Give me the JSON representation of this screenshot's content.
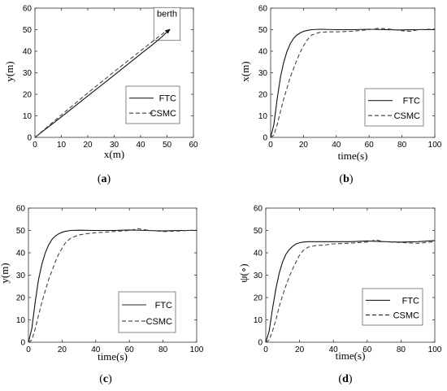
{
  "chart_data": [
    {
      "type": "line",
      "panel_label": "a",
      "xlabel": "x(m)",
      "ylabel": "y(m)",
      "xlim": [
        0,
        60
      ],
      "ylim": [
        0,
        60
      ],
      "xticks": [
        0,
        10,
        20,
        30,
        40,
        50,
        60
      ],
      "yticks": [
        0,
        10,
        20,
        30,
        40,
        50,
        60
      ],
      "grid": false,
      "legend_position": "bottom-right",
      "annotation": {
        "text": "berth",
        "box_x": [
          45,
          55
        ],
        "box_y": [
          45,
          55
        ]
      },
      "series": [
        {
          "name": "FTC",
          "style": "solid",
          "x": [
            0,
            10,
            20,
            30,
            40,
            45,
            48,
            50,
            51
          ],
          "y": [
            0,
            9.5,
            19.2,
            28.9,
            38.7,
            43.5,
            46.6,
            48.9,
            50
          ]
        },
        {
          "name": "CSMC",
          "style": "dashed",
          "x": [
            0,
            10,
            20,
            30,
            40,
            45,
            48,
            50,
            51
          ],
          "y": [
            0,
            10.4,
            20.6,
            30.5,
            40.2,
            45.0,
            47.8,
            49.6,
            50
          ]
        }
      ]
    },
    {
      "type": "line",
      "panel_label": "b",
      "xlabel": "time(s)",
      "ylabel": "x(m)",
      "xlim": [
        0,
        100
      ],
      "ylim": [
        0,
        60
      ],
      "xticks": [
        0,
        20,
        40,
        60,
        80,
        100
      ],
      "yticks": [
        0,
        10,
        20,
        30,
        40,
        50,
        60
      ],
      "grid": false,
      "legend_position": "top-right",
      "series": [
        {
          "name": "FTC",
          "style": "solid",
          "x": [
            0,
            2,
            4,
            6,
            8,
            10,
            12,
            14,
            16,
            18,
            20,
            22,
            25,
            30,
            40,
            50,
            60,
            70,
            80,
            90,
            100
          ],
          "y": [
            0,
            6,
            18,
            28,
            35,
            40,
            43.5,
            46,
            47.5,
            48.5,
            49.2,
            49.6,
            50,
            50.2,
            50,
            50,
            50.2,
            50,
            49.9,
            50,
            50
          ]
        },
        {
          "name": "CSMC",
          "style": "dashed",
          "x": [
            0,
            2,
            4,
            6,
            8,
            10,
            12,
            14,
            16,
            18,
            20,
            22,
            25,
            30,
            35,
            40,
            50,
            60,
            65,
            70,
            80,
            85,
            90,
            100
          ],
          "y": [
            0,
            1,
            6,
            12,
            18,
            23,
            28,
            32,
            36,
            39.5,
            42.5,
            45,
            47.5,
            48.8,
            49,
            49,
            49.3,
            50,
            50.6,
            50.5,
            49.5,
            49.2,
            50,
            50.3
          ]
        }
      ]
    },
    {
      "type": "line",
      "panel_label": "c",
      "xlabel": "time(s)",
      "ylabel": "y(m)",
      "xlim": [
        0,
        100
      ],
      "ylim": [
        0,
        60
      ],
      "xticks": [
        0,
        20,
        40,
        60,
        80,
        100
      ],
      "yticks": [
        0,
        10,
        20,
        30,
        40,
        50,
        60
      ],
      "grid": false,
      "legend_position": "bottom-right",
      "series": [
        {
          "name": "FTC",
          "style": "solid",
          "x": [
            0,
            2,
            4,
            6,
            8,
            10,
            12,
            14,
            16,
            18,
            20,
            22,
            25,
            30,
            40,
            50,
            60,
            70,
            80,
            90,
            100
          ],
          "y": [
            0,
            6,
            18,
            28,
            35,
            40,
            43.5,
            46,
            47.5,
            48.5,
            49.2,
            49.6,
            50,
            50.1,
            50,
            50,
            50.2,
            50,
            49.8,
            50,
            50
          ]
        },
        {
          "name": "CSMC",
          "style": "dashed",
          "x": [
            0,
            2,
            4,
            6,
            8,
            10,
            12,
            14,
            16,
            18,
            20,
            22,
            25,
            30,
            35,
            40,
            50,
            60,
            65,
            70,
            80,
            90,
            100
          ],
          "y": [
            0,
            1,
            6,
            12,
            18,
            23,
            28,
            32,
            36,
            39.5,
            42,
            44.5,
            46.5,
            48,
            48.6,
            49,
            49.5,
            50,
            50.8,
            50.2,
            49.5,
            49.8,
            50.2
          ]
        }
      ]
    },
    {
      "type": "line",
      "panel_label": "d",
      "xlabel": "time(s)",
      "ylabel": "ψ(∘)",
      "xlim": [
        0,
        100
      ],
      "ylim": [
        0,
        60
      ],
      "xticks": [
        0,
        20,
        40,
        60,
        80,
        100
      ],
      "yticks": [
        0,
        10,
        20,
        30,
        40,
        50,
        60
      ],
      "grid": false,
      "legend_position": "bottom-right",
      "series": [
        {
          "name": "FTC",
          "style": "solid",
          "x": [
            0,
            2,
            4,
            6,
            8,
            10,
            12,
            14,
            16,
            18,
            20,
            22,
            25,
            30,
            40,
            50,
            60,
            70,
            80,
            90,
            100
          ],
          "y": [
            0,
            5,
            15,
            24,
            31,
            36,
            39.5,
            41.5,
            43,
            44,
            44.5,
            44.8,
            45,
            45,
            45,
            45,
            45.3,
            45,
            44.8,
            45,
            45.5
          ]
        },
        {
          "name": "CSMC",
          "style": "dashed",
          "x": [
            0,
            2,
            4,
            6,
            8,
            10,
            12,
            14,
            16,
            18,
            20,
            22,
            25,
            30,
            35,
            40,
            50,
            60,
            65,
            70,
            80,
            90,
            100
          ],
          "y": [
            0,
            1,
            5,
            10,
            16,
            21,
            25.5,
            29.5,
            33,
            36,
            39,
            41,
            42.5,
            43.3,
            43.5,
            44,
            44.3,
            44.8,
            45.8,
            45,
            44.6,
            44.2,
            45
          ]
        }
      ]
    }
  ]
}
